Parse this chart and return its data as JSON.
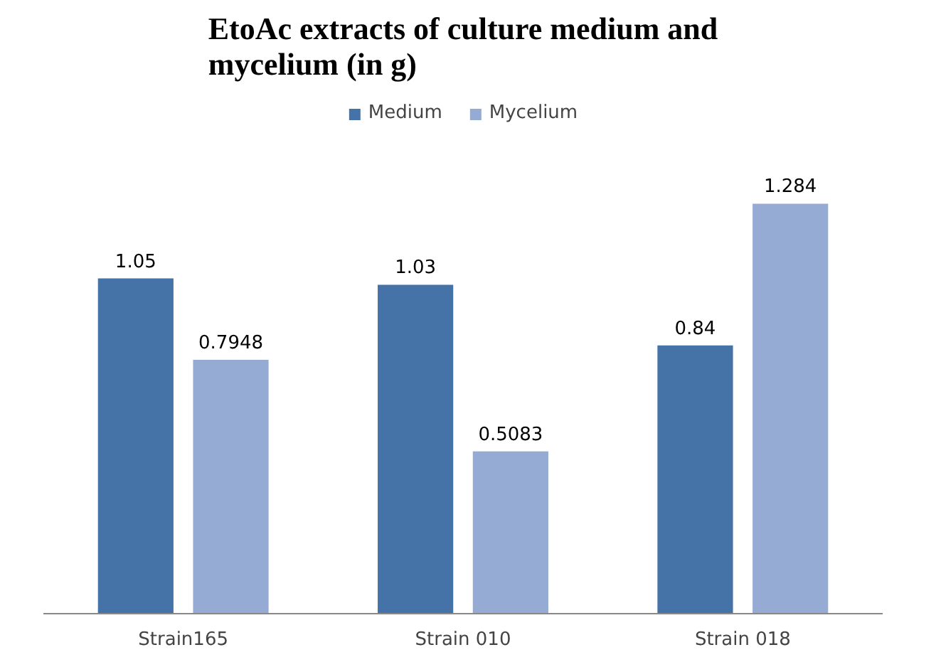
{
  "chart_data": {
    "type": "bar",
    "title": "EtoAc extracts of culture medium and mycelium (in g)",
    "categories": [
      "Strain165",
      "Strain 010",
      "Strain 018"
    ],
    "series": [
      {
        "name": "Medium",
        "color": "#4572a7",
        "values": [
          1.05,
          1.03,
          0.84
        ]
      },
      {
        "name": "Mycelium",
        "color": "#95abd3",
        "values": [
          0.7948,
          0.5083,
          1.284
        ]
      }
    ],
    "data_labels": true,
    "legend": "top",
    "grid": false,
    "tick_labels": "x"
  }
}
